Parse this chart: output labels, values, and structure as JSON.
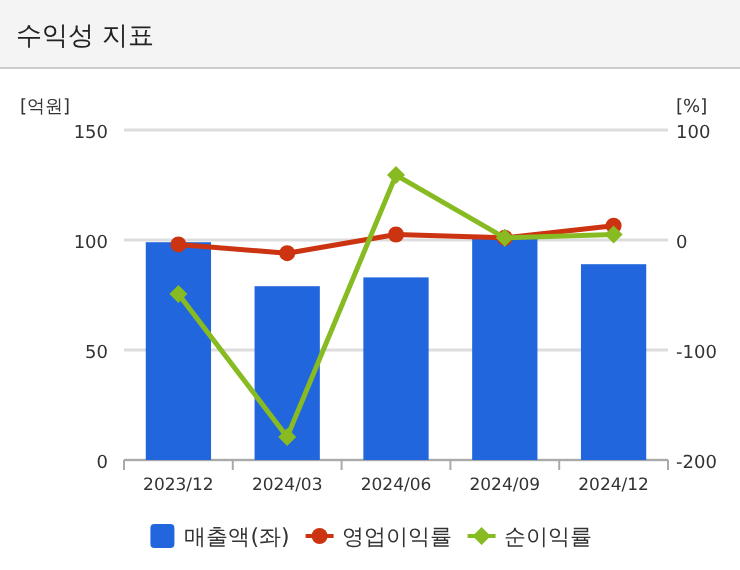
{
  "chart_data": {
    "type": "bar",
    "title": "수익성 지표",
    "ylabel": "[억원]",
    "y2label": "[%]",
    "categories": [
      "2023/12",
      "2024/03",
      "2024/06",
      "2024/09",
      "2024/12"
    ],
    "series": [
      {
        "name": "매출액(좌)",
        "color": "#2266dd",
        "values": [
          99,
          79,
          83,
          101,
          89
        ]
      },
      {
        "name": "영업이익률",
        "type": "line",
        "axis": "y2",
        "marker": "circle",
        "color": "#cc3311",
        "values": [
          -4,
          -12,
          5,
          2,
          13
        ]
      },
      {
        "name": "순이익률",
        "type": "line",
        "axis": "y2",
        "marker": "diamond",
        "color": "#88bb22",
        "values": [
          -49,
          -179,
          59,
          2,
          5
        ]
      }
    ],
    "ylim": [
      0,
      150
    ],
    "yticks": [
      0,
      50,
      100,
      150
    ],
    "y2lim": [
      -200,
      100
    ],
    "y2ticks": [
      -200,
      -100,
      0,
      100
    ],
    "grid": "y",
    "legend": "bottom"
  }
}
